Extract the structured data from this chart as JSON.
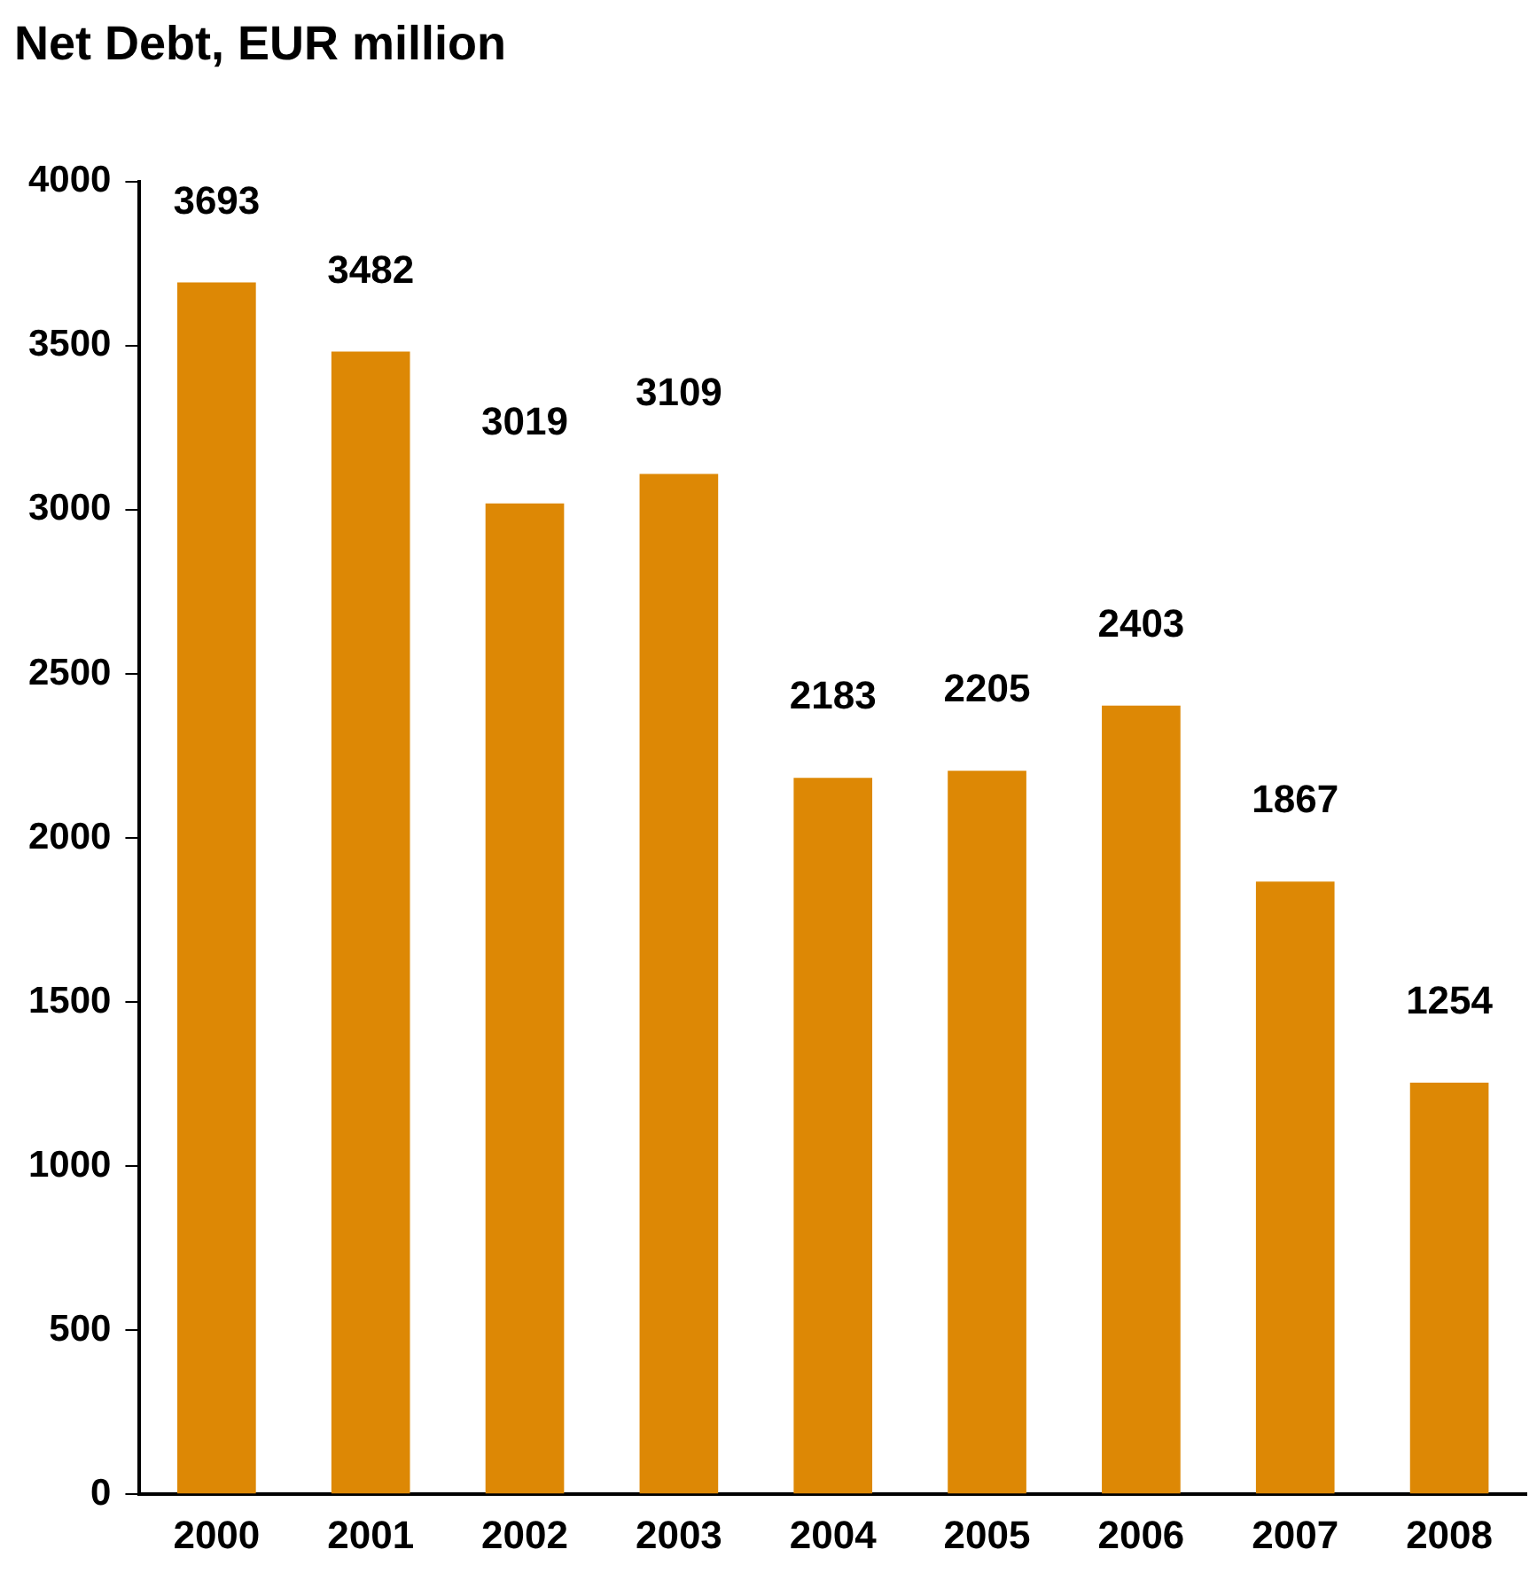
{
  "chart_data": {
    "type": "bar",
    "title": "Net Debt, EUR million",
    "categories": [
      "2000",
      "2001",
      "2002",
      "2003",
      "2004",
      "2005",
      "2006",
      "2007",
      "2008"
    ],
    "values": [
      3693,
      3482,
      3019,
      3109,
      2183,
      2205,
      2403,
      1867,
      1254
    ],
    "color": "#dd8805",
    "ylim": [
      0,
      4000
    ],
    "yticks": [
      0,
      500,
      1000,
      1500,
      2000,
      2500,
      3000,
      3500,
      4000
    ],
    "grid": false,
    "legend": false,
    "data_labels": true
  }
}
